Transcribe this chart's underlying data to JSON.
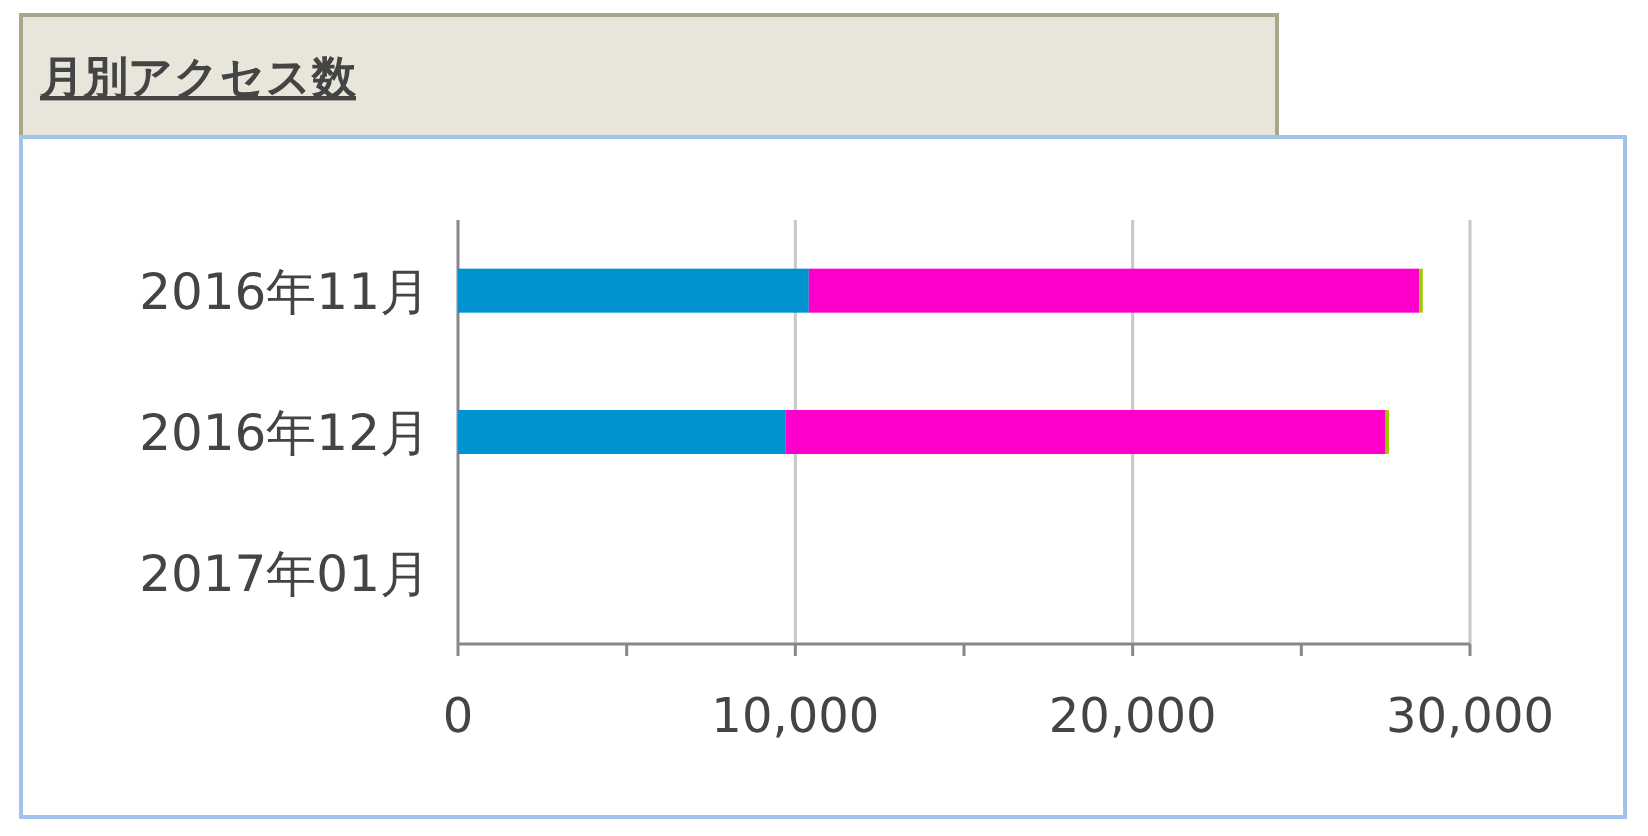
{
  "chart_data": {
    "type": "bar",
    "orientation": "horizontal",
    "stacked": true,
    "title": "月別アクセス数",
    "categories": [
      "2016年11月",
      "2016年12月",
      "2017年01月"
    ],
    "series": [
      {
        "color": "#0093d0",
        "values": [
          10400,
          9700,
          null
        ]
      },
      {
        "color": "#ff00cc",
        "values": [
          18100,
          17800,
          null
        ]
      },
      {
        "color": "#99cc00",
        "values": [
          100,
          100,
          null
        ]
      }
    ],
    "xlim": [
      0,
      30000
    ],
    "xticks": [
      0,
      {
        "value": 5000,
        "label": null
      },
      {
        "value": 10000,
        "label": "10,000"
      },
      {
        "value": 15000,
        "label": null
      },
      {
        "value": 20000,
        "label": "20,000"
      },
      {
        "value": 25000,
        "label": null
      },
      {
        "value": 30000,
        "label": "30,000"
      }
    ],
    "grid": "x"
  }
}
